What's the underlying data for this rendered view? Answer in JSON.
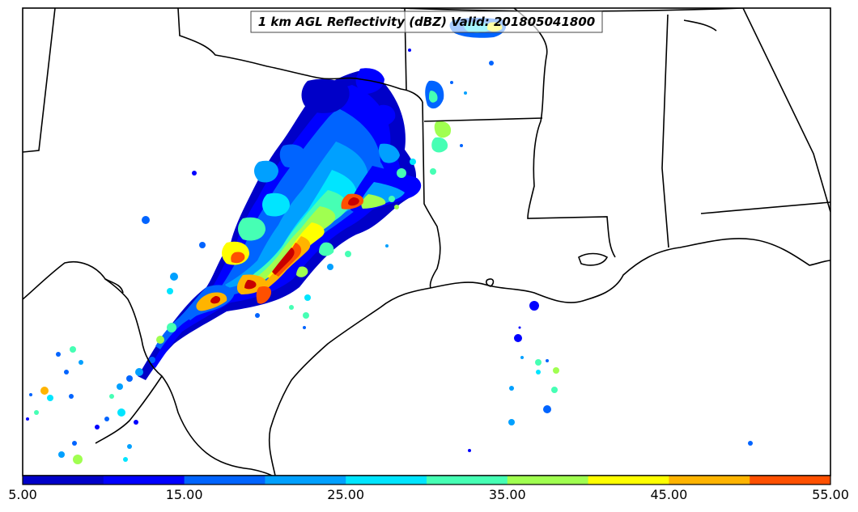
{
  "title": "1 km AGL Reflectivity (dBZ) Valid: 201805041800",
  "colorbar": {
    "min": 5,
    "max": 55,
    "step": 5,
    "colors": [
      "#0000c8",
      "#0000ff",
      "#0064ff",
      "#00a0ff",
      "#00e5ff",
      "#46ffb4",
      "#a0ff50",
      "#ffff00",
      "#ffb400",
      "#ff5000",
      "#c80000"
    ],
    "tick_labels": [
      "5.00",
      "15.00",
      "25.00",
      "35.00",
      "45.00",
      "55.00"
    ]
  }
}
